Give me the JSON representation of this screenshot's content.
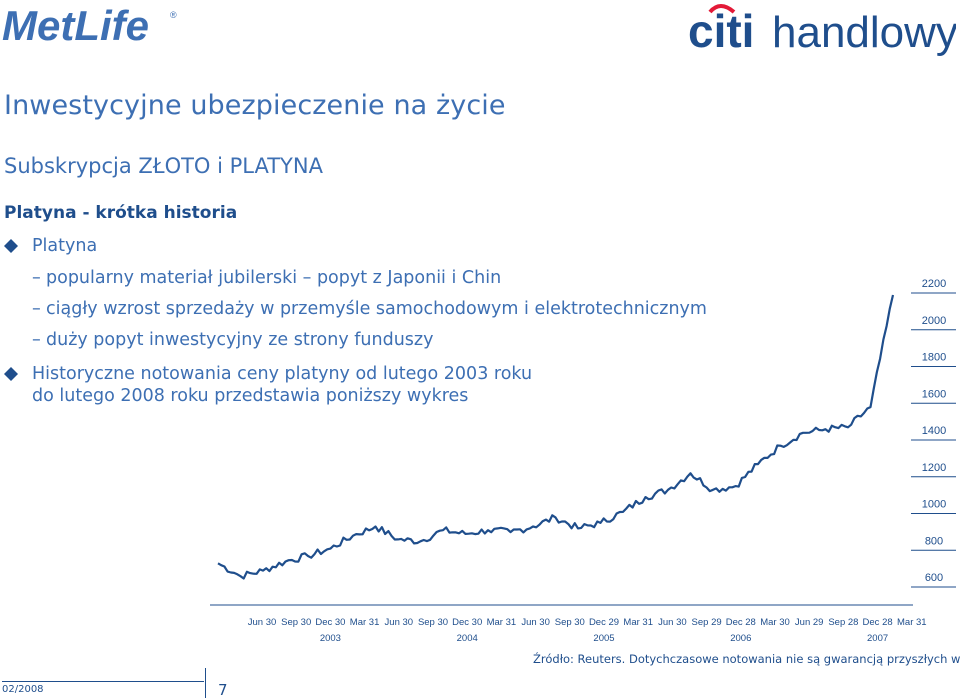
{
  "header": {
    "logo_left": "MetLife",
    "logo_right_brand": "citi",
    "logo_right_rest": "handlowy"
  },
  "title": "Inwestycyjne ubezpieczenie na życie",
  "subtitle": "Subskrypcja ZŁOTO i PLATYNA",
  "section_title": "Platyna - krótka historia",
  "bullets": [
    {
      "text": "Platyna"
    },
    {
      "text": "popularny materiał jubilerski – popyt z Japonii i Chin"
    },
    {
      "text": "ciągły wzrost sprzedaży w przemyśle samochodowym i elektrotechnicznym"
    },
    {
      "text": "duży popyt inwestycyjny ze strony funduszy"
    },
    {
      "text_line1": "Historyczne notowania ceny platyny od lutego 2003 roku",
      "text_line2": "do lutego 2008 roku przedstawia poniższy wykres"
    }
  ],
  "chart_data": {
    "type": "line",
    "ylim": [
      600,
      2200
    ],
    "y_ticks": [
      "600",
      "800",
      "1000",
      "1200",
      "1400",
      "1600",
      "1800",
      "2000",
      "2200"
    ],
    "x_ticks": [
      "Jun 30",
      "Sep 30",
      "Dec 30",
      "Mar 31",
      "Jun 30",
      "Sep 30",
      "Dec 30",
      "Mar 31",
      "Jun 30",
      "Sep 30",
      "Dec 29",
      "Mar 31",
      "Jun 30",
      "Sep 29",
      "Dec 28",
      "Mar 30",
      "Jun 29",
      "Sep 28",
      "Dec 28",
      "Mar 31"
    ],
    "year_labels": [
      "2003",
      "2004",
      "2005",
      "2006",
      "2007"
    ],
    "x": [
      0,
      2,
      4,
      6,
      8,
      10,
      12,
      14,
      16,
      18,
      20,
      22,
      24,
      26,
      28,
      30,
      32,
      34,
      36,
      38,
      40,
      42,
      44,
      46,
      48,
      50,
      52,
      54,
      56,
      58,
      60
    ],
    "values": [
      680,
      610,
      640,
      690,
      720,
      760,
      830,
      880,
      810,
      800,
      860,
      840,
      860,
      850,
      880,
      930,
      870,
      900,
      960,
      1040,
      1080,
      1170,
      1080,
      1100,
      1220,
      1320,
      1390,
      1410,
      1420,
      1530,
      2140
    ],
    "line_color": "#1f4e8c"
  },
  "source": "Źródło: Reuters. Dotychczasowe notowania nie są gwarancją przyszłych wyników.",
  "footer": {
    "date": "02/2008",
    "page": "7"
  },
  "colors": {
    "accent_blue": "#3d6fb3",
    "dark_blue": "#1f4e8c",
    "citi_red": "#e31937"
  }
}
